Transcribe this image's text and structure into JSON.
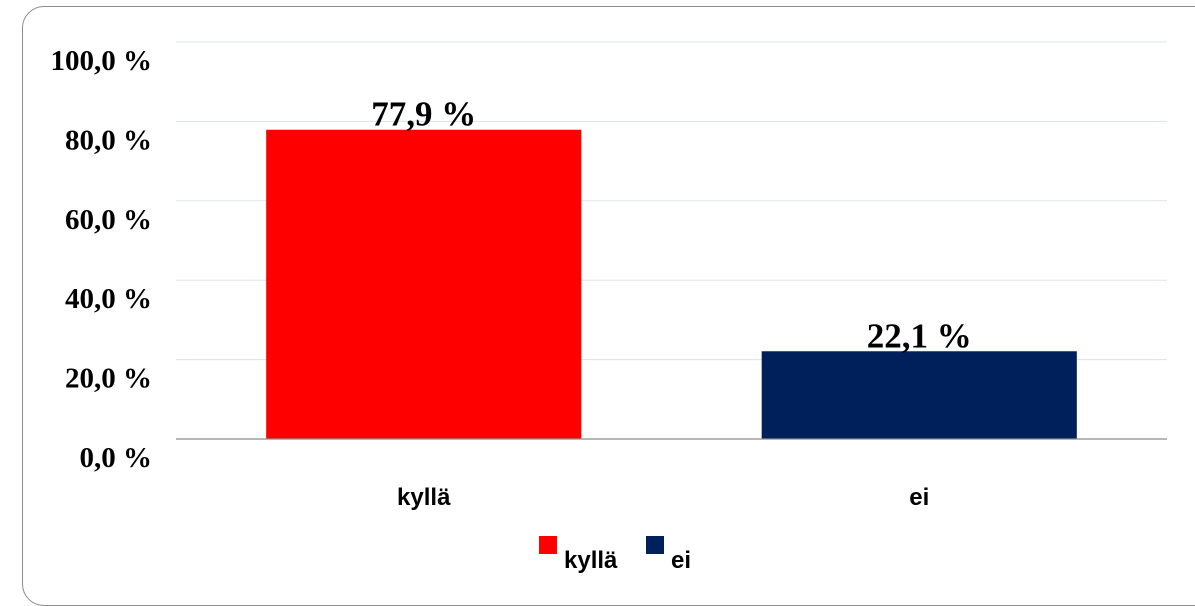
{
  "chart_data": {
    "type": "bar",
    "categories": [
      "kyllä",
      "ei"
    ],
    "values": [
      77.9,
      22.1
    ],
    "data_labels": [
      "77,9 %",
      "22,1 %"
    ],
    "colors": [
      "#ff0000",
      "#00205b"
    ],
    "ylim": [
      0,
      100
    ],
    "yticks": [
      0,
      20,
      40,
      60,
      80,
      100
    ],
    "ytick_labels": [
      "0,0 %",
      "20,0 %",
      "40,0 %",
      "60,0 %",
      "80,0 %",
      "100,0 %"
    ],
    "grid": true,
    "legend": {
      "placement": "bottom",
      "entries": [
        "kyllä",
        "ei"
      ]
    }
  }
}
